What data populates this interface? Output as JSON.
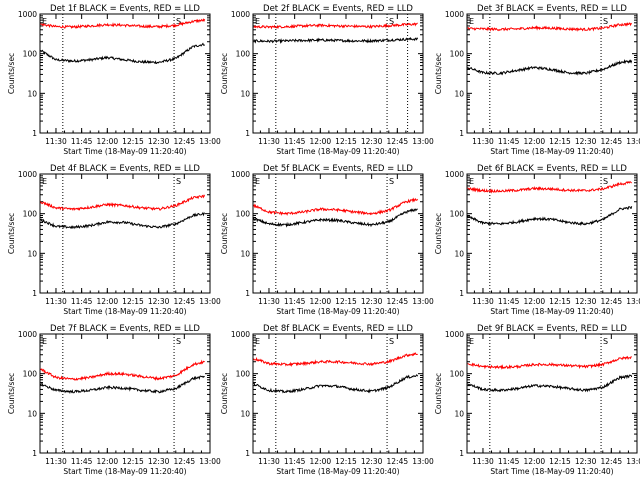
{
  "colors": {
    "events": "#000000",
    "lld": "#ff0000",
    "axis": "#000000",
    "background": "#ffffff"
  },
  "shared": {
    "xlabel": "Start Time (18-May-09 11:20:40)",
    "ylabel": "Counts/sec",
    "xticks": [
      "11:30",
      "11:45",
      "12:00",
      "12:15",
      "12:30",
      "12:45",
      "13:00"
    ],
    "yticks": [
      "1",
      "10",
      "100",
      "1000"
    ],
    "marker_e": "E",
    "marker_s": "S"
  },
  "chart_data": [
    {
      "type": "line",
      "title": "Det 1f BLACK = Events, RED = LLD",
      "xlim": [
        "11:20:40",
        "13:00:00"
      ],
      "ylim": [
        1,
        1000
      ],
      "yscale": "log",
      "markers": {
        "E": "11:20:40",
        "S": "12:39:00"
      },
      "vlines": [
        "11:34:00",
        "12:39:00"
      ],
      "series": [
        {
          "name": "Events",
          "color": "#000000",
          "x": [
            "11:21",
            "11:30",
            "11:40",
            "11:50",
            "12:00",
            "12:10",
            "12:20",
            "12:30",
            "12:40",
            "12:50",
            "12:57"
          ],
          "values": [
            120,
            70,
            65,
            70,
            80,
            70,
            62,
            60,
            75,
            150,
            175
          ]
        },
        {
          "name": "LLD",
          "color": "#ff0000",
          "x": [
            "11:21",
            "11:30",
            "11:40",
            "11:50",
            "12:00",
            "12:10",
            "12:20",
            "12:30",
            "12:40",
            "12:50",
            "12:57"
          ],
          "values": [
            550,
            480,
            470,
            500,
            540,
            520,
            490,
            480,
            520,
            650,
            700
          ]
        }
      ]
    },
    {
      "type": "line",
      "title": "Det 2f BLACK = Events, RED = LLD",
      "xlim": [
        "11:20:40",
        "13:00:00"
      ],
      "ylim": [
        1,
        1000
      ],
      "yscale": "log",
      "markers": {
        "E": "11:20:40",
        "S": "12:39:00"
      },
      "vlines": [
        "11:34:00",
        "12:39:00",
        "12:51:00"
      ],
      "series": [
        {
          "name": "Events",
          "color": "#000000",
          "x": [
            "11:21",
            "11:30",
            "11:40",
            "11:50",
            "12:00",
            "12:10",
            "12:20",
            "12:30",
            "12:40",
            "12:50",
            "12:57"
          ],
          "values": [
            210,
            205,
            210,
            215,
            220,
            215,
            210,
            210,
            220,
            230,
            235
          ]
        },
        {
          "name": "LLD",
          "color": "#ff0000",
          "x": [
            "11:21",
            "11:30",
            "11:40",
            "11:50",
            "12:00",
            "12:10",
            "12:20",
            "12:30",
            "12:40",
            "12:50",
            "12:57"
          ],
          "values": [
            480,
            470,
            480,
            500,
            520,
            500,
            490,
            480,
            510,
            540,
            560
          ]
        }
      ]
    },
    {
      "type": "line",
      "title": "Det 3f BLACK = Events, RED = LLD",
      "xlim": [
        "11:20:40",
        "13:00:00"
      ],
      "ylim": [
        1,
        1000
      ],
      "yscale": "log",
      "markers": {
        "E": "11:20:40",
        "S": "12:39:00"
      },
      "vlines": [
        "11:34:00",
        "12:39:00"
      ],
      "series": [
        {
          "name": "Events",
          "color": "#000000",
          "x": [
            "11:21",
            "11:30",
            "11:40",
            "11:50",
            "12:00",
            "12:10",
            "12:20",
            "12:30",
            "12:40",
            "12:50",
            "12:57"
          ],
          "values": [
            45,
            33,
            32,
            38,
            45,
            40,
            33,
            32,
            40,
            60,
            65
          ]
        },
        {
          "name": "LLD",
          "color": "#ff0000",
          "x": [
            "11:21",
            "11:30",
            "11:40",
            "11:50",
            "12:00",
            "12:10",
            "12:20",
            "12:30",
            "12:40",
            "12:50",
            "12:57"
          ],
          "values": [
            430,
            420,
            410,
            420,
            450,
            440,
            420,
            410,
            440,
            540,
            560
          ]
        }
      ]
    },
    {
      "type": "line",
      "title": "Det 4f BLACK = Events, RED = LLD",
      "xlim": [
        "11:20:40",
        "13:00:00"
      ],
      "ylim": [
        1,
        1000
      ],
      "yscale": "log",
      "markers": {
        "E": "11:20:40",
        "S": "12:39:00"
      },
      "vlines": [
        "11:34:00",
        "12:39:00"
      ],
      "series": [
        {
          "name": "Events",
          "color": "#000000",
          "x": [
            "11:21",
            "11:30",
            "11:40",
            "11:50",
            "12:00",
            "12:10",
            "12:20",
            "12:30",
            "12:40",
            "12:50",
            "12:57"
          ],
          "values": [
            70,
            48,
            45,
            50,
            62,
            60,
            50,
            45,
            55,
            90,
            100
          ]
        },
        {
          "name": "LLD",
          "color": "#ff0000",
          "x": [
            "11:21",
            "11:30",
            "11:40",
            "11:50",
            "12:00",
            "12:10",
            "12:20",
            "12:30",
            "12:40",
            "12:50",
            "12:57"
          ],
          "values": [
            200,
            140,
            130,
            145,
            170,
            160,
            140,
            130,
            160,
            250,
            280
          ]
        }
      ]
    },
    {
      "type": "line",
      "title": "Det 5f BLACK = Events, RED = LLD",
      "xlim": [
        "11:20:40",
        "13:00:00"
      ],
      "ylim": [
        1,
        1000
      ],
      "yscale": "log",
      "markers": {
        "E": "11:20:40",
        "S": "12:39:00"
      },
      "vlines": [
        "11:34:00",
        "12:39:00"
      ],
      "series": [
        {
          "name": "Events",
          "color": "#000000",
          "x": [
            "11:21",
            "11:30",
            "11:40",
            "11:50",
            "12:00",
            "12:10",
            "12:20",
            "12:30",
            "12:40",
            "12:50",
            "12:57"
          ],
          "values": [
            75,
            55,
            52,
            60,
            70,
            68,
            58,
            52,
            62,
            110,
            130
          ]
        },
        {
          "name": "LLD",
          "color": "#ff0000",
          "x": [
            "11:21",
            "11:30",
            "11:40",
            "11:50",
            "12:00",
            "12:10",
            "12:20",
            "12:30",
            "12:40",
            "12:50",
            "12:57"
          ],
          "values": [
            160,
            110,
            100,
            110,
            130,
            125,
            110,
            100,
            120,
            200,
            230
          ]
        }
      ]
    },
    {
      "type": "line",
      "title": "Det 6f BLACK = Events, RED = LLD",
      "xlim": [
        "11:20:40",
        "13:00:00"
      ],
      "ylim": [
        1,
        1000
      ],
      "yscale": "log",
      "markers": {
        "E": "11:20:40",
        "S": "12:39:00"
      },
      "vlines": [
        "11:34:00",
        "12:39:00"
      ],
      "series": [
        {
          "name": "Events",
          "color": "#000000",
          "x": [
            "11:21",
            "11:30",
            "11:40",
            "11:50",
            "12:00",
            "12:10",
            "12:20",
            "12:30",
            "12:40",
            "12:50",
            "12:57"
          ],
          "values": [
            85,
            58,
            55,
            62,
            75,
            72,
            60,
            55,
            70,
            130,
            145
          ]
        },
        {
          "name": "LLD",
          "color": "#ff0000",
          "x": [
            "11:21",
            "11:30",
            "11:40",
            "11:50",
            "12:00",
            "12:10",
            "12:20",
            "12:30",
            "12:40",
            "12:50",
            "12:57"
          ],
          "values": [
            430,
            380,
            370,
            390,
            430,
            420,
            390,
            380,
            420,
            560,
            610
          ]
        }
      ]
    },
    {
      "type": "line",
      "title": "Det 7f BLACK = Events, RED = LLD",
      "xlim": [
        "11:20:40",
        "13:00:00"
      ],
      "ylim": [
        1,
        1000
      ],
      "yscale": "log",
      "markers": {
        "E": "11:20:40",
        "S": "12:39:00"
      },
      "vlines": [
        "11:34:00",
        "12:39:00"
      ],
      "series": [
        {
          "name": "Events",
          "color": "#000000",
          "x": [
            "11:21",
            "11:30",
            "11:40",
            "11:50",
            "12:00",
            "12:10",
            "12:20",
            "12:30",
            "12:40",
            "12:50",
            "12:57"
          ],
          "values": [
            55,
            38,
            35,
            38,
            45,
            43,
            38,
            35,
            42,
            75,
            85
          ]
        },
        {
          "name": "LLD",
          "color": "#ff0000",
          "x": [
            "11:21",
            "11:30",
            "11:40",
            "11:50",
            "12:00",
            "12:10",
            "12:20",
            "12:30",
            "12:40",
            "12:50",
            "12:57"
          ],
          "values": [
            130,
            80,
            72,
            80,
            100,
            98,
            85,
            75,
            90,
            170,
            200
          ]
        }
      ]
    },
    {
      "type": "line",
      "title": "Det 8f BLACK = Events, RED = LLD",
      "xlim": [
        "11:20:40",
        "13:00:00"
      ],
      "ylim": [
        1,
        1000
      ],
      "yscale": "log",
      "markers": {
        "E": "11:20:40",
        "S": "12:39:00"
      },
      "vlines": [
        "11:34:00",
        "12:39:00"
      ],
      "series": [
        {
          "name": "Events",
          "color": "#000000",
          "x": [
            "11:21",
            "11:30",
            "11:40",
            "11:50",
            "12:00",
            "12:10",
            "12:20",
            "12:30",
            "12:40",
            "12:50",
            "12:57"
          ],
          "values": [
            55,
            38,
            35,
            40,
            50,
            48,
            40,
            36,
            45,
            80,
            90
          ]
        },
        {
          "name": "LLD",
          "color": "#ff0000",
          "x": [
            "11:21",
            "11:30",
            "11:40",
            "11:50",
            "12:00",
            "12:10",
            "12:20",
            "12:30",
            "12:40",
            "12:50",
            "12:57"
          ],
          "values": [
            240,
            180,
            170,
            180,
            200,
            200,
            185,
            175,
            200,
            290,
            320
          ]
        }
      ]
    },
    {
      "type": "line",
      "title": "Det 9f BLACK = Events, RED = LLD",
      "xlim": [
        "11:20:40",
        "13:00:00"
      ],
      "ylim": [
        1,
        1000
      ],
      "yscale": "log",
      "markers": {
        "E": "11:20:40",
        "S": "12:39:00"
      },
      "vlines": [
        "11:34:00",
        "12:39:00"
      ],
      "series": [
        {
          "name": "Events",
          "color": "#000000",
          "x": [
            "11:21",
            "11:30",
            "11:40",
            "11:50",
            "12:00",
            "12:10",
            "12:20",
            "12:30",
            "12:40",
            "12:50",
            "12:57"
          ],
          "values": [
            55,
            40,
            38,
            42,
            50,
            48,
            42,
            38,
            45,
            80,
            88
          ]
        },
        {
          "name": "LLD",
          "color": "#ff0000",
          "x": [
            "11:21",
            "11:30",
            "11:40",
            "11:50",
            "12:00",
            "12:10",
            "12:20",
            "12:30",
            "12:40",
            "12:50",
            "12:57"
          ],
          "values": [
            180,
            150,
            145,
            150,
            170,
            170,
            160,
            150,
            170,
            240,
            260
          ]
        }
      ]
    }
  ]
}
